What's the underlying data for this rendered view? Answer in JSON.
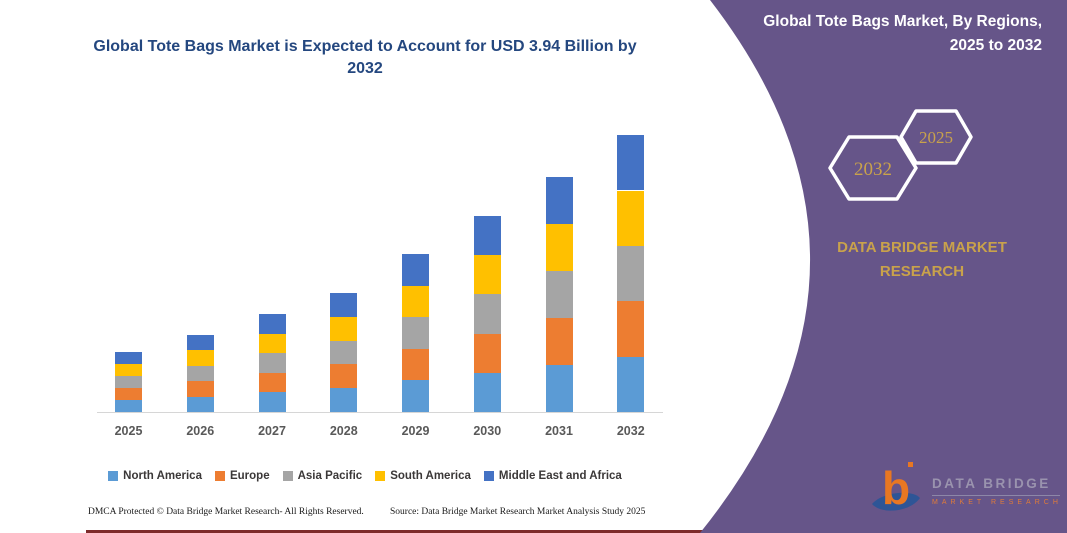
{
  "colors": {
    "purple": "#665589",
    "gold": "#C9A24B",
    "title_navy": "#24477F",
    "axis_gray": "#D6D6D6",
    "xlabel_gray": "#595959",
    "legend_text": "#3B3838",
    "maroon_line": "#7E2B2B",
    "logo_orange": "#E87722",
    "logo_blue": "#2E5596"
  },
  "chart_title": "Global Tote Bags Market is Expected to Account for USD 3.94 Billion by 2032",
  "chart_data": {
    "type": "bar",
    "stacked": true,
    "unit": "USD Billion",
    "title": "Global Tote Bags Market is Expected to Account for USD 3.94 Billion by 2032",
    "categories": [
      "2025",
      "2026",
      "2027",
      "2028",
      "2029",
      "2030",
      "2031",
      "2032"
    ],
    "series": [
      {
        "name": "North America",
        "color": "#5B9BD5",
        "values": [
          0.17,
          0.22,
          0.28,
          0.34,
          0.45,
          0.56,
          0.67,
          0.79
        ]
      },
      {
        "name": "Europe",
        "color": "#ED7D31",
        "values": [
          0.17,
          0.22,
          0.28,
          0.34,
          0.45,
          0.56,
          0.67,
          0.79
        ]
      },
      {
        "name": "Asia Pacific",
        "color": "#A5A5A5",
        "values": [
          0.17,
          0.22,
          0.28,
          0.34,
          0.45,
          0.56,
          0.67,
          0.79
        ]
      },
      {
        "name": "South America",
        "color": "#FFC000",
        "values": [
          0.17,
          0.22,
          0.28,
          0.34,
          0.45,
          0.56,
          0.67,
          0.79
        ]
      },
      {
        "name": "Middle East and Africa",
        "color": "#4472C4",
        "values": [
          0.17,
          0.22,
          0.28,
          0.34,
          0.45,
          0.56,
          0.67,
          0.79
        ]
      }
    ],
    "totals": [
      0.85,
      1.1,
      1.4,
      1.7,
      2.25,
      2.8,
      3.35,
      3.95
    ],
    "xlabel": "",
    "ylabel": "",
    "ylim": [
      0,
      4.2
    ],
    "grid": false,
    "y_axis_visible": false,
    "legend_position": "bottom"
  },
  "right_panel": {
    "title": "Global Tote Bags Market, By Regions, 2025 to 2032",
    "hexagon_back_label": "2032",
    "hexagon_front_label": "2025",
    "brand_text": "DATA BRIDGE MARKET RESEARCH"
  },
  "logo": {
    "letter": "b",
    "wordmark": "DATA BRIDGE",
    "tagline": "MARKET RESEARCH"
  },
  "footer": {
    "left": "DMCA Protected © Data Bridge Market Research-  All Rights Reserved.",
    "source": "Source: Data Bridge Market Research  Market Analysis Study 2025"
  }
}
